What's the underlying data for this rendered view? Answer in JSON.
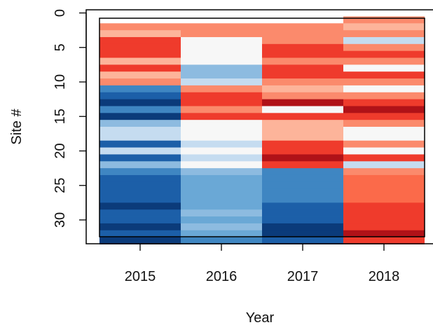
{
  "chart_data": {
    "type": "heatmap",
    "title": "",
    "xlabel": "Year",
    "ylabel": "Site #",
    "x_categories": [
      "2015",
      "2016",
      "2017",
      "2018"
    ],
    "y_ticks": [
      "0",
      "5",
      "10",
      "15",
      "20",
      "25",
      "30"
    ],
    "y_range": [
      0,
      33
    ],
    "y_orientation": "reversed",
    "color_scale": "blue-white-red diverging",
    "grid": false,
    "legend": "none",
    "palette": {
      "dark_blue": "#0b3b7a",
      "blue": "#1c5fa8",
      "medium_blue": "#3f86c2",
      "light_blue": "#8dbbe0",
      "pale_blue": "#c5dcf0",
      "white": "#f7f7f7",
      "light_salmon": "#fdb49a",
      "salmon": "#fb8a6c",
      "red": "#ef3b2c",
      "dark_red": "#b01218"
    },
    "series": [
      {
        "name": "2015",
        "cells": [
          {
            "y": 1,
            "color": "#ffffff"
          },
          {
            "y": 2,
            "color": "#fb8a6c"
          },
          {
            "y": 3,
            "color": "#fdb49a"
          },
          {
            "y": 4,
            "color": "#ef3b2c"
          },
          {
            "y": 5,
            "color": "#ef3b2c"
          },
          {
            "y": 6,
            "color": "#ef3b2c"
          },
          {
            "y": 7,
            "color": "#fdb49a"
          },
          {
            "y": 8,
            "color": "#ef3b2c"
          },
          {
            "y": 9,
            "color": "#fdb49a"
          },
          {
            "y": 10,
            "color": "#fb8a6c"
          },
          {
            "y": 11,
            "color": "#3f86c2"
          },
          {
            "y": 12,
            "color": "#1c5fa8"
          },
          {
            "y": 13,
            "color": "#0b3b7a"
          },
          {
            "y": 14,
            "color": "#3f86c2"
          },
          {
            "y": 15,
            "color": "#0b3b7a"
          },
          {
            "y": 16,
            "color": "#8dbbe0"
          },
          {
            "y": 17,
            "color": "#c5dcf0"
          },
          {
            "y": 18,
            "color": "#c5dcf0"
          },
          {
            "y": 19,
            "color": "#1c5fa8"
          },
          {
            "y": 20,
            "color": "#c5dcf0"
          },
          {
            "y": 21,
            "color": "#1c5fa8"
          },
          {
            "y": 22,
            "color": "#8dbbe0"
          },
          {
            "y": 23,
            "color": "#3f86c2"
          },
          {
            "y": 24,
            "color": "#1c5fa8"
          },
          {
            "y": 25,
            "color": "#1c5fa8"
          },
          {
            "y": 26,
            "color": "#1c5fa8"
          },
          {
            "y": 27,
            "color": "#1c5fa8"
          },
          {
            "y": 28,
            "color": "#0b3b7a"
          },
          {
            "y": 29,
            "color": "#1c5fa8"
          },
          {
            "y": 30,
            "color": "#1c5fa8"
          },
          {
            "y": 31,
            "color": "#0b3b7a"
          },
          {
            "y": 32,
            "color": "#1c5fa8"
          },
          {
            "y": 33,
            "color": "#0b3b7a"
          }
        ]
      },
      {
        "name": "2016",
        "cells": [
          {
            "y": 1,
            "color": "#ffffff"
          },
          {
            "y": 2,
            "color": "#fb8a6c"
          },
          {
            "y": 3,
            "color": "#fb8a6c"
          },
          {
            "y": 4,
            "color": "#f7f7f7"
          },
          {
            "y": 5,
            "color": "#f7f7f7"
          },
          {
            "y": 6,
            "color": "#f7f7f7"
          },
          {
            "y": 7,
            "color": "#f7f7f7"
          },
          {
            "y": 8,
            "color": "#8dbbe0"
          },
          {
            "y": 9,
            "color": "#8dbbe0"
          },
          {
            "y": 10,
            "color": "#c5dcf0"
          },
          {
            "y": 11,
            "color": "#fb8a6c"
          },
          {
            "y": 12,
            "color": "#ef3b2c"
          },
          {
            "y": 13,
            "color": "#ef3b2c"
          },
          {
            "y": 14,
            "color": "#fb8a6c"
          },
          {
            "y": 15,
            "color": "#ef3b2c"
          },
          {
            "y": 16,
            "color": "#f7f7f7"
          },
          {
            "y": 17,
            "color": "#f7f7f7"
          },
          {
            "y": 18,
            "color": "#f7f7f7"
          },
          {
            "y": 19,
            "color": "#c5dcf0"
          },
          {
            "y": 20,
            "color": "#f7f7f7"
          },
          {
            "y": 21,
            "color": "#c5dcf0"
          },
          {
            "y": 22,
            "color": "#f7f7f7"
          },
          {
            "y": 23,
            "color": "#8dbbe0"
          },
          {
            "y": 24,
            "color": "#6aa8d6"
          },
          {
            "y": 25,
            "color": "#6aa8d6"
          },
          {
            "y": 26,
            "color": "#6aa8d6"
          },
          {
            "y": 27,
            "color": "#6aa8d6"
          },
          {
            "y": 28,
            "color": "#6aa8d6"
          },
          {
            "y": 29,
            "color": "#8dbbe0"
          },
          {
            "y": 30,
            "color": "#6aa8d6"
          },
          {
            "y": 31,
            "color": "#8dbbe0"
          },
          {
            "y": 32,
            "color": "#6aa8d6"
          },
          {
            "y": 33,
            "color": "#3f86c2"
          }
        ]
      },
      {
        "name": "2017",
        "cells": [
          {
            "y": 1,
            "color": "#ffffff"
          },
          {
            "y": 2,
            "color": "#fb8a6c"
          },
          {
            "y": 3,
            "color": "#fb8a6c"
          },
          {
            "y": 4,
            "color": "#fb8a6c"
          },
          {
            "y": 5,
            "color": "#ef3b2c"
          },
          {
            "y": 6,
            "color": "#ef3b2c"
          },
          {
            "y": 7,
            "color": "#fb8a6c"
          },
          {
            "y": 8,
            "color": "#ef3b2c"
          },
          {
            "y": 9,
            "color": "#ef3b2c"
          },
          {
            "y": 10,
            "color": "#fb8a6c"
          },
          {
            "y": 11,
            "color": "#fdb49a"
          },
          {
            "y": 12,
            "color": "#fb8a6c"
          },
          {
            "y": 13,
            "color": "#b01218"
          },
          {
            "y": 14,
            "color": "#f7f7f7"
          },
          {
            "y": 15,
            "color": "#ef3b2c"
          },
          {
            "y": 16,
            "color": "#fdb49a"
          },
          {
            "y": 17,
            "color": "#fdb49a"
          },
          {
            "y": 18,
            "color": "#fdb49a"
          },
          {
            "y": 19,
            "color": "#ef3b2c"
          },
          {
            "y": 20,
            "color": "#ef3b2c"
          },
          {
            "y": 21,
            "color": "#b01218"
          },
          {
            "y": 22,
            "color": "#ef3b2c"
          },
          {
            "y": 23,
            "color": "#3f86c2"
          },
          {
            "y": 24,
            "color": "#3f86c2"
          },
          {
            "y": 25,
            "color": "#3f86c2"
          },
          {
            "y": 26,
            "color": "#3f86c2"
          },
          {
            "y": 27,
            "color": "#3f86c2"
          },
          {
            "y": 28,
            "color": "#1c5fa8"
          },
          {
            "y": 29,
            "color": "#1c5fa8"
          },
          {
            "y": 30,
            "color": "#1c5fa8"
          },
          {
            "y": 31,
            "color": "#0b3b7a"
          },
          {
            "y": 32,
            "color": "#0b3b7a"
          },
          {
            "y": 33,
            "color": "#1c5fa8"
          }
        ]
      },
      {
        "name": "2018",
        "cells": [
          {
            "y": 1,
            "color": "#fb8a6c"
          },
          {
            "y": 2,
            "color": "#fdb49a"
          },
          {
            "y": 3,
            "color": "#fb8a6c"
          },
          {
            "y": 4,
            "color": "#c5dcf0"
          },
          {
            "y": 5,
            "color": "#fb8a6c"
          },
          {
            "y": 6,
            "color": "#ef3b2c"
          },
          {
            "y": 7,
            "color": "#fb8a6c"
          },
          {
            "y": 8,
            "color": "#f7f7f7"
          },
          {
            "y": 9,
            "color": "#ef3b2c"
          },
          {
            "y": 10,
            "color": "#fb8a6c"
          },
          {
            "y": 11,
            "color": "#f7f7f7"
          },
          {
            "y": 12,
            "color": "#fb8a6c"
          },
          {
            "y": 13,
            "color": "#ef3b2c"
          },
          {
            "y": 14,
            "color": "#b01218"
          },
          {
            "y": 15,
            "color": "#ef3b2c"
          },
          {
            "y": 16,
            "color": "#fb8a6c"
          },
          {
            "y": 17,
            "color": "#f7f7f7"
          },
          {
            "y": 18,
            "color": "#f7f7f7"
          },
          {
            "y": 19,
            "color": "#fb8a6c"
          },
          {
            "y": 20,
            "color": "#f7f7f7"
          },
          {
            "y": 21,
            "color": "#ef3b2c"
          },
          {
            "y": 22,
            "color": "#c5dcf0"
          },
          {
            "y": 23,
            "color": "#fb8a6c"
          },
          {
            "y": 24,
            "color": "#fb6a4a"
          },
          {
            "y": 25,
            "color": "#fb6a4a"
          },
          {
            "y": 26,
            "color": "#fb6a4a"
          },
          {
            "y": 27,
            "color": "#fb6a4a"
          },
          {
            "y": 28,
            "color": "#ef3b2c"
          },
          {
            "y": 29,
            "color": "#ef3b2c"
          },
          {
            "y": 30,
            "color": "#ef3b2c"
          },
          {
            "y": 31,
            "color": "#ef3b2c"
          },
          {
            "y": 32,
            "color": "#b01218"
          },
          {
            "y": 33,
            "color": "#ef3b2c"
          }
        ]
      }
    ]
  }
}
